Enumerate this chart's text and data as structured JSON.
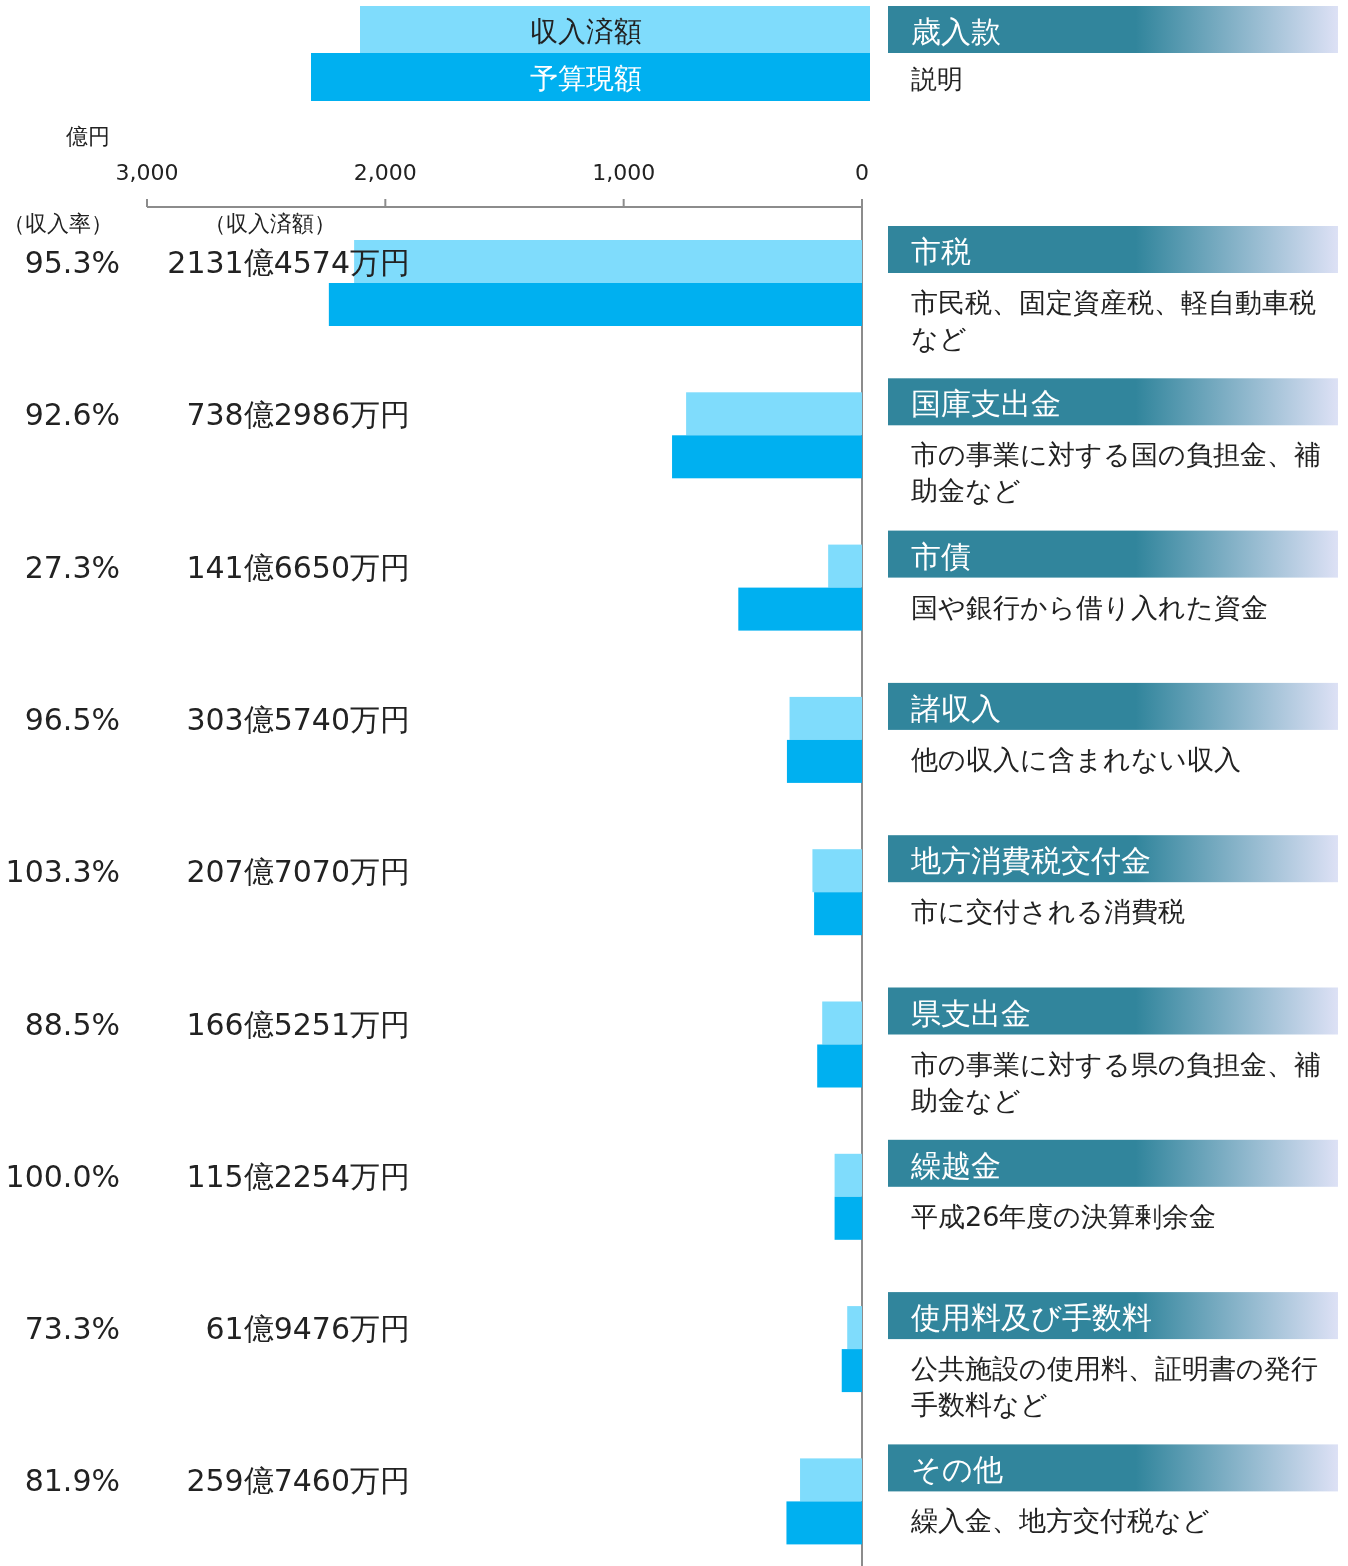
{
  "chart_data": {
    "type": "bar",
    "orientation": "horizontal",
    "xlabel": "億円",
    "ylabel": "歳入款",
    "categories": [
      "市税",
      "国庫支出金",
      "市債",
      "諸収入",
      "地方消費税交付金",
      "県支出金",
      "繰越金",
      "使用料及び手数料",
      "その他"
    ],
    "series": [
      {
        "name": "収入済額",
        "color": "#7fdcfc",
        "values": [
          2131,
          738,
          142,
          304,
          208,
          167,
          115,
          62,
          260
        ]
      },
      {
        "name": "予算現額",
        "color": "#00b0f0",
        "values": [
          2237,
          797,
          519,
          315,
          201,
          188,
          115,
          85,
          317
        ]
      }
    ],
    "xlim": [
      3000,
      0
    ],
    "xticks": [
      {
        "value": 3000,
        "label": "3,000"
      },
      {
        "value": 2000,
        "label": "2,000"
      },
      {
        "value": 1000,
        "label": "1,000"
      },
      0
    ],
    "legend": "top",
    "annotations": [
      "説明",
      "（収入率）",
      "（収入済額）",
      "95.3%",
      "2131億4574万円",
      "市民税、固定資産税、軽自動車税など",
      "92.6%",
      "738億2986万円",
      "市の事業に対する国の負担金、補助金など",
      "27.3%",
      "141億6650万円",
      "国や銀行から借り入れた資金",
      "96.5%",
      "303億5740万円",
      "他の収入に含まれない収入",
      "103.3%",
      "207億7070万円",
      "市に交付される消費税",
      "88.5%",
      "166億5251万円",
      "市の事業に対する県の負担金、補助金など",
      "100.0%",
      "115億2254万円",
      "平成26年度の決算剰余金",
      "73.3%",
      "61億9476万円",
      "公共施設の使用料、証明書の発行手数料など",
      "81.9%",
      "259億7460万円",
      "繰入金、地方交付税など"
    ]
  }
}
